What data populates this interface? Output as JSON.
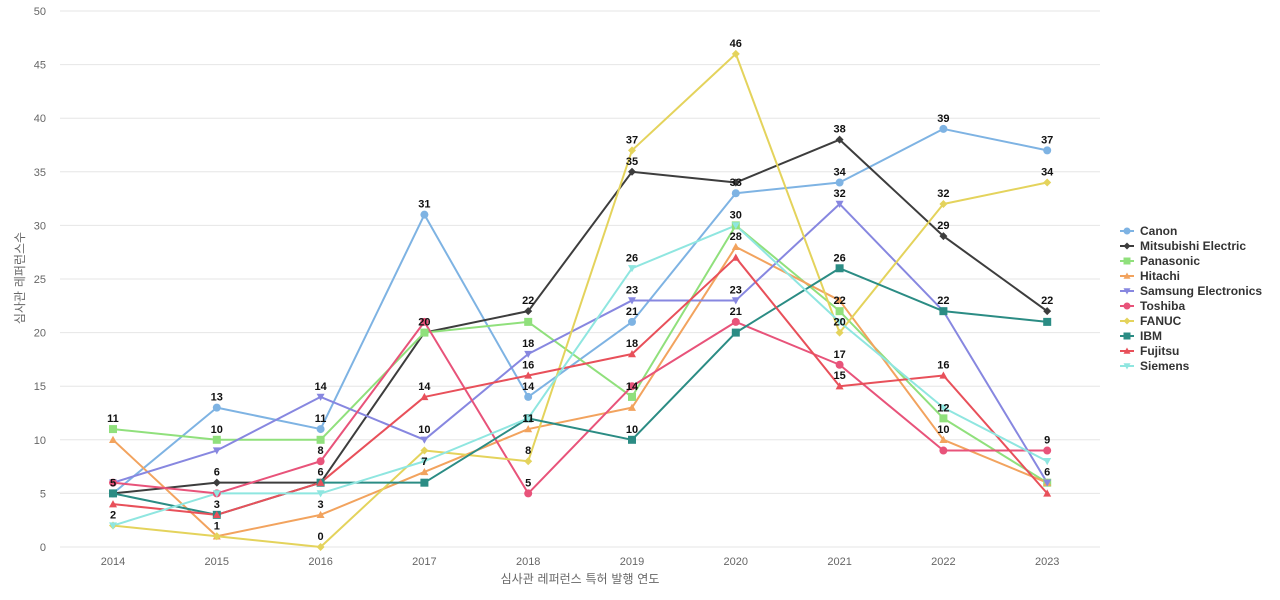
{
  "chart_data": {
    "type": "line",
    "title": "",
    "xlabel": "심사관 레퍼런스 특허 발행 연도",
    "ylabel": "심사관 레퍼런스수",
    "x": [
      "2014",
      "2015",
      "2016",
      "2017",
      "2018",
      "2019",
      "2020",
      "2021",
      "2022",
      "2023"
    ],
    "ylim": [
      0,
      50
    ],
    "yticks": [
      0,
      5,
      10,
      15,
      20,
      25,
      30,
      35,
      40,
      45,
      50
    ],
    "grid": true,
    "legend_position": "right",
    "series": [
      {
        "name": "Canon",
        "color": "#7eb3e3",
        "marker": "circle",
        "values": [
          5,
          13,
          11,
          31,
          14,
          21,
          33,
          34,
          39,
          37
        ]
      },
      {
        "name": "Mitsubishi Electric",
        "color": "#3d3d3d",
        "marker": "diamond",
        "values": [
          5,
          6,
          6,
          20,
          22,
          35,
          34,
          38,
          29,
          22
        ]
      },
      {
        "name": "Panasonic",
        "color": "#90e07c",
        "marker": "square",
        "values": [
          11,
          10,
          10,
          20,
          21,
          14,
          30,
          22,
          12,
          6
        ]
      },
      {
        "name": "Hitachi",
        "color": "#f2a35e",
        "marker": "triangle-up",
        "values": [
          10,
          1,
          3,
          7,
          11,
          13,
          28,
          23,
          10,
          6
        ]
      },
      {
        "name": "Samsung Electronics",
        "color": "#8787e0",
        "marker": "triangle-down",
        "values": [
          6,
          9,
          14,
          10,
          18,
          23,
          23,
          32,
          22,
          6
        ]
      },
      {
        "name": "Toshiba",
        "color": "#e8537a",
        "marker": "circle",
        "values": [
          6,
          5,
          8,
          21,
          5,
          15,
          21,
          17,
          9,
          9
        ]
      },
      {
        "name": "FANUC",
        "color": "#e4d35c",
        "marker": "diamond",
        "values": [
          2,
          1,
          0,
          9,
          8,
          37,
          46,
          20,
          32,
          34
        ]
      },
      {
        "name": "IBM",
        "color": "#2b8c84",
        "marker": "square",
        "values": [
          5,
          3,
          6,
          6,
          12,
          10,
          20,
          26,
          22,
          21
        ]
      },
      {
        "name": "Fujitsu",
        "color": "#e8505a",
        "marker": "triangle-up",
        "values": [
          4,
          3,
          6,
          14,
          16,
          18,
          27,
          15,
          16,
          5
        ]
      },
      {
        "name": "Siemens",
        "color": "#8fe6e0",
        "marker": "triangle-down",
        "values": [
          2,
          5,
          5,
          8,
          12,
          26,
          30,
          21,
          13,
          8
        ]
      }
    ],
    "data_labels": [
      {
        "x": "2014",
        "text": "11",
        "value": 11
      },
      {
        "x": "2014",
        "text": "5",
        "value": 5
      },
      {
        "x": "2014",
        "text": "2",
        "value": 2
      },
      {
        "x": "2015",
        "text": "13",
        "value": 13
      },
      {
        "x": "2015",
        "text": "10",
        "value": 10
      },
      {
        "x": "2015",
        "text": "6",
        "value": 6
      },
      {
        "x": "2015",
        "text": "3",
        "value": 3
      },
      {
        "x": "2015",
        "text": "1",
        "value": 1
      },
      {
        "x": "2016",
        "text": "14",
        "value": 14
      },
      {
        "x": "2016",
        "text": "11",
        "value": 11
      },
      {
        "x": "2016",
        "text": "8",
        "value": 8
      },
      {
        "x": "2016",
        "text": "6",
        "value": 6
      },
      {
        "x": "2016",
        "text": "3",
        "value": 3
      },
      {
        "x": "2016",
        "text": "0",
        "value": 0
      },
      {
        "x": "2017",
        "text": "31",
        "value": 31
      },
      {
        "x": "2017",
        "text": "20",
        "value": 20
      },
      {
        "x": "2017",
        "text": "14",
        "value": 14
      },
      {
        "x": "2017",
        "text": "10",
        "value": 10
      },
      {
        "x": "2017",
        "text": "7",
        "value": 7
      },
      {
        "x": "2018",
        "text": "22",
        "value": 22
      },
      {
        "x": "2018",
        "text": "18",
        "value": 18
      },
      {
        "x": "2018",
        "text": "16",
        "value": 16
      },
      {
        "x": "2018",
        "text": "14",
        "value": 14
      },
      {
        "x": "2018",
        "text": "11",
        "value": 11
      },
      {
        "x": "2018",
        "text": "8",
        "value": 8
      },
      {
        "x": "2018",
        "text": "5",
        "value": 5
      },
      {
        "x": "2019",
        "text": "37",
        "value": 37
      },
      {
        "x": "2019",
        "text": "35",
        "value": 35
      },
      {
        "x": "2019",
        "text": "26",
        "value": 26
      },
      {
        "x": "2019",
        "text": "23",
        "value": 23
      },
      {
        "x": "2019",
        "text": "21",
        "value": 21
      },
      {
        "x": "2019",
        "text": "18",
        "value": 18
      },
      {
        "x": "2019",
        "text": "14",
        "value": 14
      },
      {
        "x": "2019",
        "text": "10",
        "value": 10
      },
      {
        "x": "2020",
        "text": "46",
        "value": 46
      },
      {
        "x": "2020",
        "text": "33",
        "value": 33
      },
      {
        "x": "2020",
        "text": "30",
        "value": 30
      },
      {
        "x": "2020",
        "text": "28",
        "value": 28
      },
      {
        "x": "2020",
        "text": "23",
        "value": 23
      },
      {
        "x": "2020",
        "text": "21",
        "value": 21
      },
      {
        "x": "2021",
        "text": "38",
        "value": 38
      },
      {
        "x": "2021",
        "text": "34",
        "value": 34
      },
      {
        "x": "2021",
        "text": "32",
        "value": 32
      },
      {
        "x": "2021",
        "text": "26",
        "value": 26
      },
      {
        "x": "2021",
        "text": "22",
        "value": 22
      },
      {
        "x": "2021",
        "text": "20",
        "value": 20
      },
      {
        "x": "2021",
        "text": "17",
        "value": 17
      },
      {
        "x": "2021",
        "text": "15",
        "value": 15
      },
      {
        "x": "2022",
        "text": "39",
        "value": 39
      },
      {
        "x": "2022",
        "text": "32",
        "value": 32
      },
      {
        "x": "2022",
        "text": "29",
        "value": 29
      },
      {
        "x": "2022",
        "text": "22",
        "value": 22
      },
      {
        "x": "2022",
        "text": "16",
        "value": 16
      },
      {
        "x": "2022",
        "text": "12",
        "value": 12
      },
      {
        "x": "2022",
        "text": "10",
        "value": 10
      },
      {
        "x": "2023",
        "text": "37",
        "value": 37
      },
      {
        "x": "2023",
        "text": "34",
        "value": 34
      },
      {
        "x": "2023",
        "text": "22",
        "value": 22
      },
      {
        "x": "2023",
        "text": "9",
        "value": 9
      },
      {
        "x": "2023",
        "text": "6",
        "value": 6
      }
    ]
  }
}
